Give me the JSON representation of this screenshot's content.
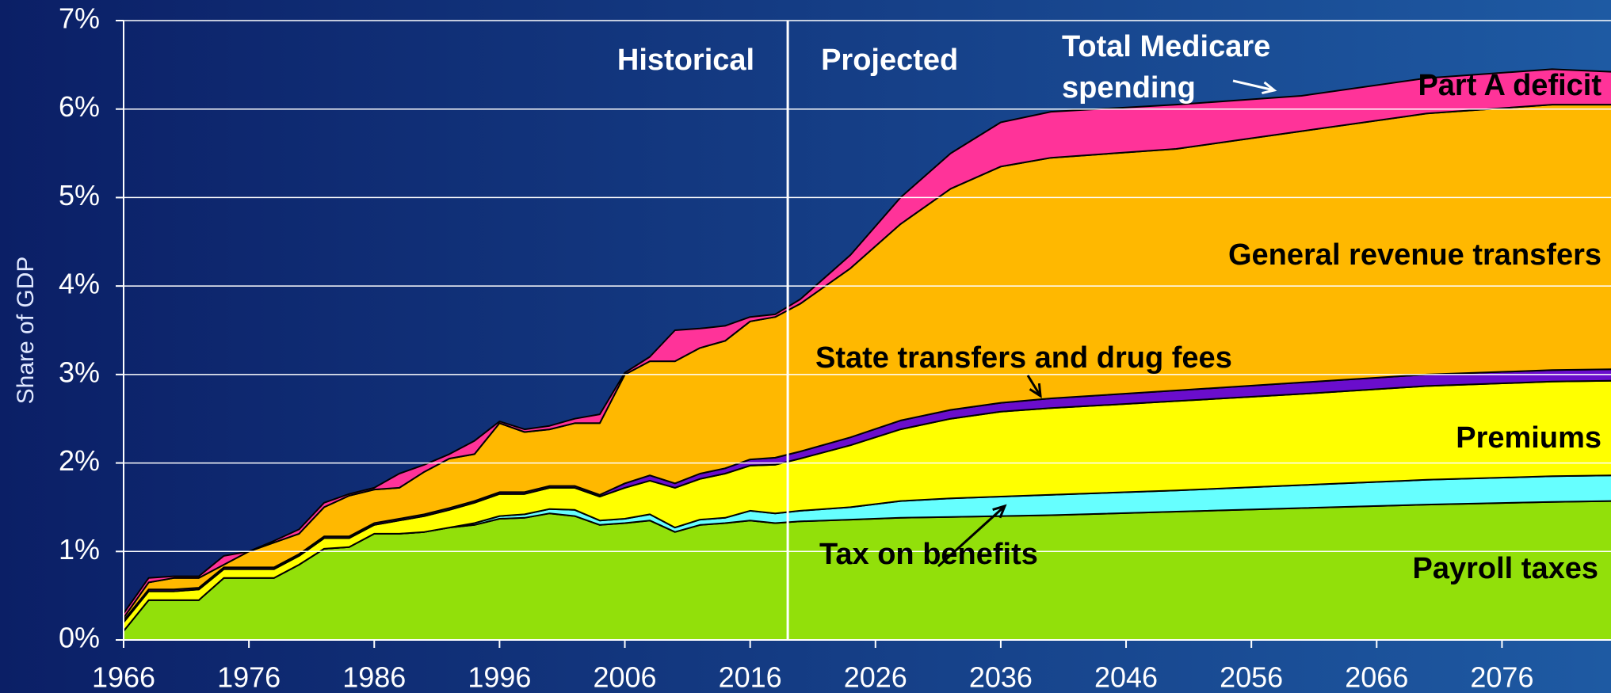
{
  "chart_data": {
    "type": "stacked_area",
    "y_label": "Share of GDP",
    "x": [
      1966,
      1968,
      1970,
      1972,
      1974,
      1976,
      1978,
      1980,
      1982,
      1984,
      1986,
      1988,
      1990,
      1992,
      1994,
      1996,
      1998,
      2000,
      2002,
      2004,
      2006,
      2008,
      2010,
      2012,
      2014,
      2016,
      2018,
      2020,
      2024,
      2028,
      2032,
      2036,
      2040,
      2050,
      2060,
      2070,
      2080,
      2085
    ],
    "series": [
      {
        "name": "Payroll taxes",
        "color": "#92e00a",
        "values": [
          0.1,
          0.45,
          0.45,
          0.45,
          0.7,
          0.7,
          0.7,
          0.85,
          1.03,
          1.05,
          1.2,
          1.2,
          1.22,
          1.27,
          1.3,
          1.37,
          1.38,
          1.43,
          1.4,
          1.3,
          1.32,
          1.35,
          1.22,
          1.3,
          1.32,
          1.35,
          1.32,
          1.34,
          1.36,
          1.38,
          1.39,
          1.4,
          1.41,
          1.45,
          1.49,
          1.53,
          1.56,
          1.57
        ]
      },
      {
        "name": "Tax on benefits",
        "color": "#66ffff",
        "values": [
          0,
          0,
          0,
          0,
          0,
          0,
          0,
          0,
          0,
          0,
          0,
          0,
          0,
          0,
          0.02,
          0.03,
          0.04,
          0.05,
          0.07,
          0.05,
          0.05,
          0.07,
          0.05,
          0.06,
          0.06,
          0.11,
          0.11,
          0.12,
          0.14,
          0.19,
          0.21,
          0.22,
          0.23,
          0.24,
          0.26,
          0.28,
          0.29,
          0.29
        ]
      },
      {
        "name": "Premiums",
        "color": "#ffff00",
        "values": [
          0.1,
          0.1,
          0.1,
          0.12,
          0.1,
          0.1,
          0.1,
          0.1,
          0.12,
          0.1,
          0.1,
          0.15,
          0.18,
          0.2,
          0.23,
          0.25,
          0.23,
          0.24,
          0.25,
          0.27,
          0.35,
          0.38,
          0.45,
          0.46,
          0.5,
          0.51,
          0.55,
          0.59,
          0.7,
          0.81,
          0.9,
          0.96,
          0.98,
          1.01,
          1.03,
          1.06,
          1.07,
          1.07
        ]
      },
      {
        "name": "State transfers and drug fees",
        "color": "#6a0dcc",
        "values": [
          0.02,
          0.02,
          0.02,
          0.02,
          0.02,
          0.02,
          0.02,
          0.02,
          0.02,
          0.02,
          0.02,
          0.02,
          0.02,
          0.02,
          0.02,
          0.02,
          0.02,
          0.02,
          0.02,
          0.02,
          0.05,
          0.06,
          0.05,
          0.06,
          0.06,
          0.07,
          0.08,
          0.08,
          0.09,
          0.1,
          0.1,
          0.1,
          0.11,
          0.12,
          0.13,
          0.13,
          0.13,
          0.13
        ]
      },
      {
        "name": "General revenue transfers",
        "color": "#ffb800",
        "values": [
          0.03,
          0.08,
          0.13,
          0.11,
          0.03,
          0.18,
          0.28,
          0.23,
          0.33,
          0.46,
          0.38,
          0.35,
          0.48,
          0.56,
          0.53,
          0.78,
          0.68,
          0.64,
          0.71,
          0.81,
          1.23,
          1.29,
          1.38,
          1.42,
          1.44,
          1.56,
          1.59,
          1.67,
          1.91,
          2.22,
          2.5,
          2.67,
          2.72,
          2.73,
          2.84,
          2.95,
          3.0,
          2.99
        ]
      },
      {
        "name": "Part A deficit",
        "color": "#ff3399",
        "values": [
          0.05,
          0.05,
          0.02,
          0.02,
          0.1,
          0,
          0.02,
          0.05,
          0.05,
          0.02,
          0.02,
          0.16,
          0.08,
          0.05,
          0.15,
          0.02,
          0.03,
          0.04,
          0.05,
          0.1,
          0.02,
          0.05,
          0.35,
          0.22,
          0.17,
          0.05,
          0.03,
          0.05,
          0.15,
          0.3,
          0.4,
          0.5,
          0.52,
          0.5,
          0.4,
          0.4,
          0.4,
          0.37
        ]
      }
    ],
    "xlim": [
      1966,
      2084.7
    ],
    "ylim": [
      0,
      7
    ],
    "xticks": [
      1966,
      1976,
      1986,
      1996,
      2006,
      2016,
      2026,
      2036,
      2046,
      2056,
      2066,
      2076
    ],
    "yticks": [
      {
        "value": 0,
        "label": "0%"
      },
      {
        "value": 1,
        "label": "1%"
      },
      {
        "value": 2,
        "label": "2%"
      },
      {
        "value": 3,
        "label": "3%"
      },
      {
        "value": 4,
        "label": "4%"
      },
      {
        "value": 5,
        "label": "5%"
      },
      {
        "value": 6,
        "label": "6%"
      },
      {
        "value": 7,
        "label": "7%"
      }
    ],
    "grid": true,
    "divider_x": 2019,
    "annotations": {
      "historical": "Historical",
      "projected": "Projected",
      "total": [
        "Total Medicare",
        "spending"
      ]
    }
  }
}
